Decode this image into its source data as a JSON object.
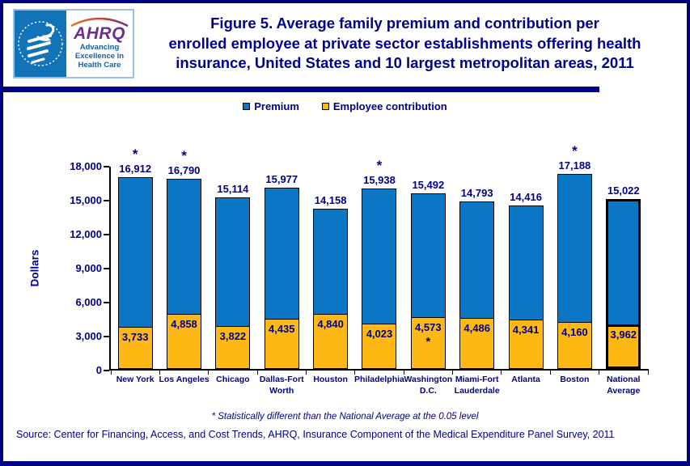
{
  "page": {
    "title_lines": [
      "Figure 5. Average family premium and contribution per",
      "enrolled employee at private sector establishments offering health",
      "insurance, United States and 10 largest metropolitan areas, 2011"
    ],
    "footnote": "* Statistically different than the National Average at the 0.05 level",
    "source": "Source: Center for Financing, Access, and Cost Trends, AHRQ, Insurance Component of the Medical Expenditure Panel Survey, 2011"
  },
  "logo": {
    "ahrq_acronym": "AHRQ",
    "ahrq_tagline": "Advancing Excellence in Health Care"
  },
  "legend": [
    {
      "label": "Premium",
      "color": "#0b76c4"
    },
    {
      "label": "Employee contribution",
      "color": "#fdb813"
    }
  ],
  "colors": {
    "navy_text": "#00008B",
    "frame_border": "#000080",
    "premium_bar": "#0b76c4",
    "contribution_bar": "#fdb813",
    "hhs_logo_blue": "#1273b8",
    "ahrq_purple": "#68308f"
  },
  "chart_data": {
    "type": "bar",
    "title": "Average family premium and contribution per enrolled employee at private sector establishments offering health insurance, United States and 10 largest metropolitan areas, 2011",
    "ylabel": "Dollars",
    "ylim": [
      0,
      18000
    ],
    "ytick_step": 3000,
    "ytick_labels": [
      "0",
      "3,000",
      "6,000",
      "9,000",
      "12,000",
      "15,000",
      "18,000"
    ],
    "grid": false,
    "legend_position": "top",
    "categories": [
      "New York",
      "Los Angeles",
      "Chicago",
      "Dallas-Fort Worth",
      "Houston",
      "Philadelphia",
      "Washington D.C.",
      "Miami-Fort Lauderdale",
      "Atlanta",
      "Boston",
      "National Average"
    ],
    "series": [
      {
        "name": "Premium",
        "color": "#0b76c4",
        "values": [
          16912,
          16790,
          15114,
          15977,
          14158,
          15938,
          15492,
          14793,
          14416,
          17188,
          15022
        ]
      },
      {
        "name": "Employee contribution",
        "color": "#fdb813",
        "values": [
          3733,
          4858,
          3822,
          4435,
          4840,
          4023,
          4573,
          4486,
          4341,
          4160,
          3962
        ]
      }
    ],
    "premium_significant": [
      true,
      true,
      false,
      false,
      false,
      true,
      false,
      false,
      false,
      true,
      false
    ],
    "contribution_significant": [
      false,
      false,
      false,
      false,
      false,
      false,
      true,
      false,
      false,
      false,
      false
    ],
    "highlight_index": 10,
    "significance_marker": "*"
  }
}
